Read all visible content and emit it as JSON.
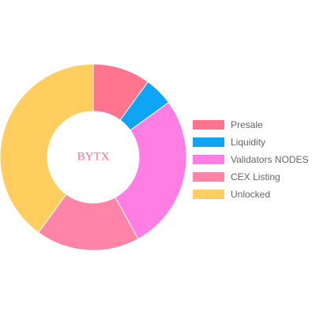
{
  "chart_data": {
    "type": "pie",
    "center_text": "BYTX",
    "categories": [
      "Presale",
      "Liquidity",
      "Validators NODES",
      "CEX Listing",
      "Unlocked"
    ],
    "values": [
      10,
      5,
      27,
      18,
      40
    ],
    "colors": [
      "#ff758e",
      "#0ea5f5",
      "#ff7ee3",
      "#ff84a7",
      "#ffce5f"
    ],
    "center_text_color": "#ff6f8c",
    "legend_position": "right"
  }
}
